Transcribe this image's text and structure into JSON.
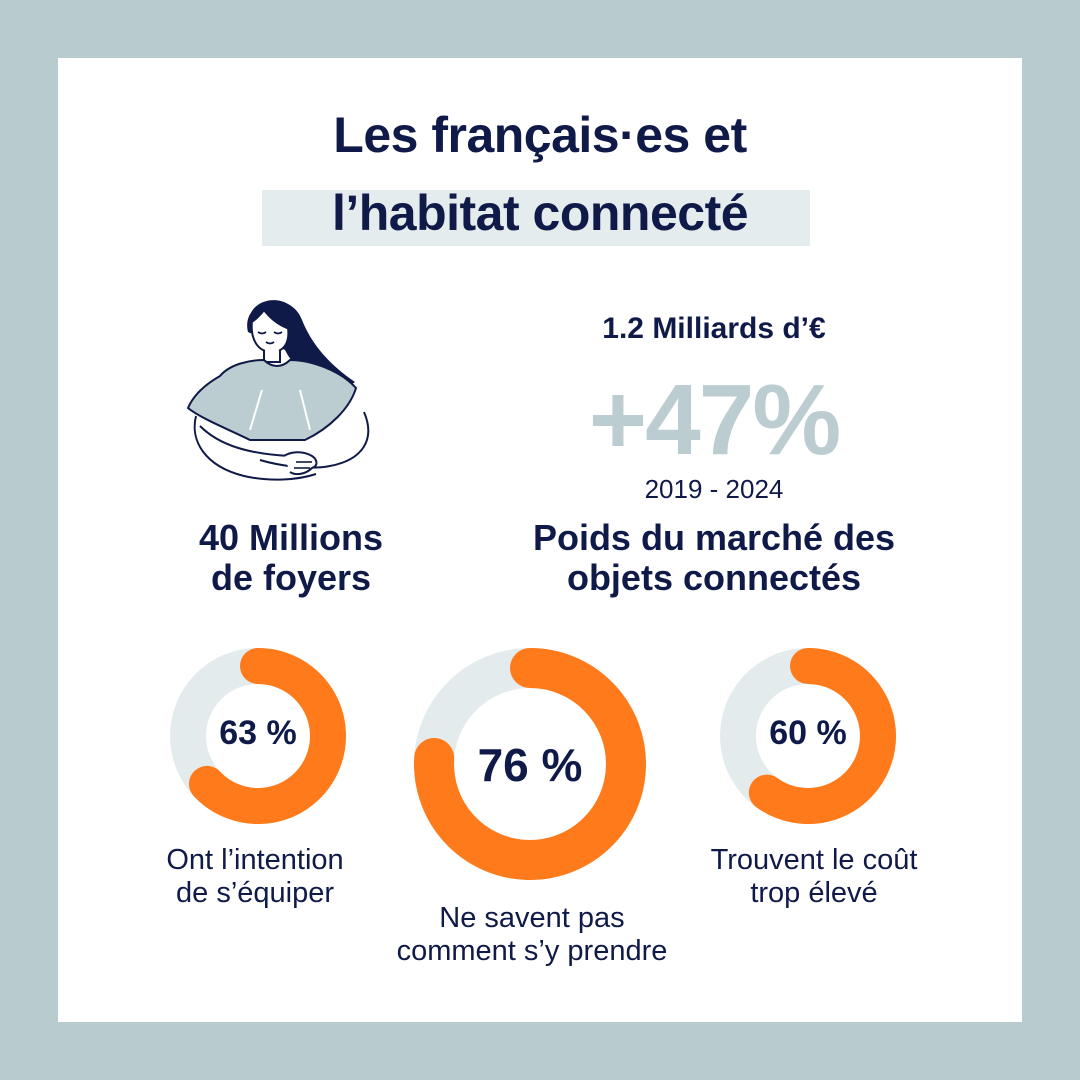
{
  "title": {
    "line1": "Les français·es et",
    "line2": "l’habitat connecté"
  },
  "households": {
    "line1": "40 Millions",
    "line2": "de foyers"
  },
  "market": {
    "amount": "1.2 Milliards d’€",
    "growth": "+47%",
    "period": "2019 - 2024",
    "caption_line1": "Poids du marché des",
    "caption_line2": "objets connectés"
  },
  "stats": [
    {
      "percent": 63,
      "label": "63 %",
      "caption_line1": "Ont l’intention",
      "caption_line2": "de s’équiper"
    },
    {
      "percent": 76,
      "label": "76 %",
      "caption_line1": "Ne savent pas",
      "caption_line2": "comment s’y prendre"
    },
    {
      "percent": 60,
      "label": "60 %",
      "caption_line1": "Trouvent le coût",
      "caption_line2": "trop élevé"
    }
  ],
  "colors": {
    "navy": "#101a48",
    "orange": "#ff7a1a",
    "track": "#e4ebec",
    "frame": "#b8cbcf",
    "muted": "#bccdd1"
  }
}
